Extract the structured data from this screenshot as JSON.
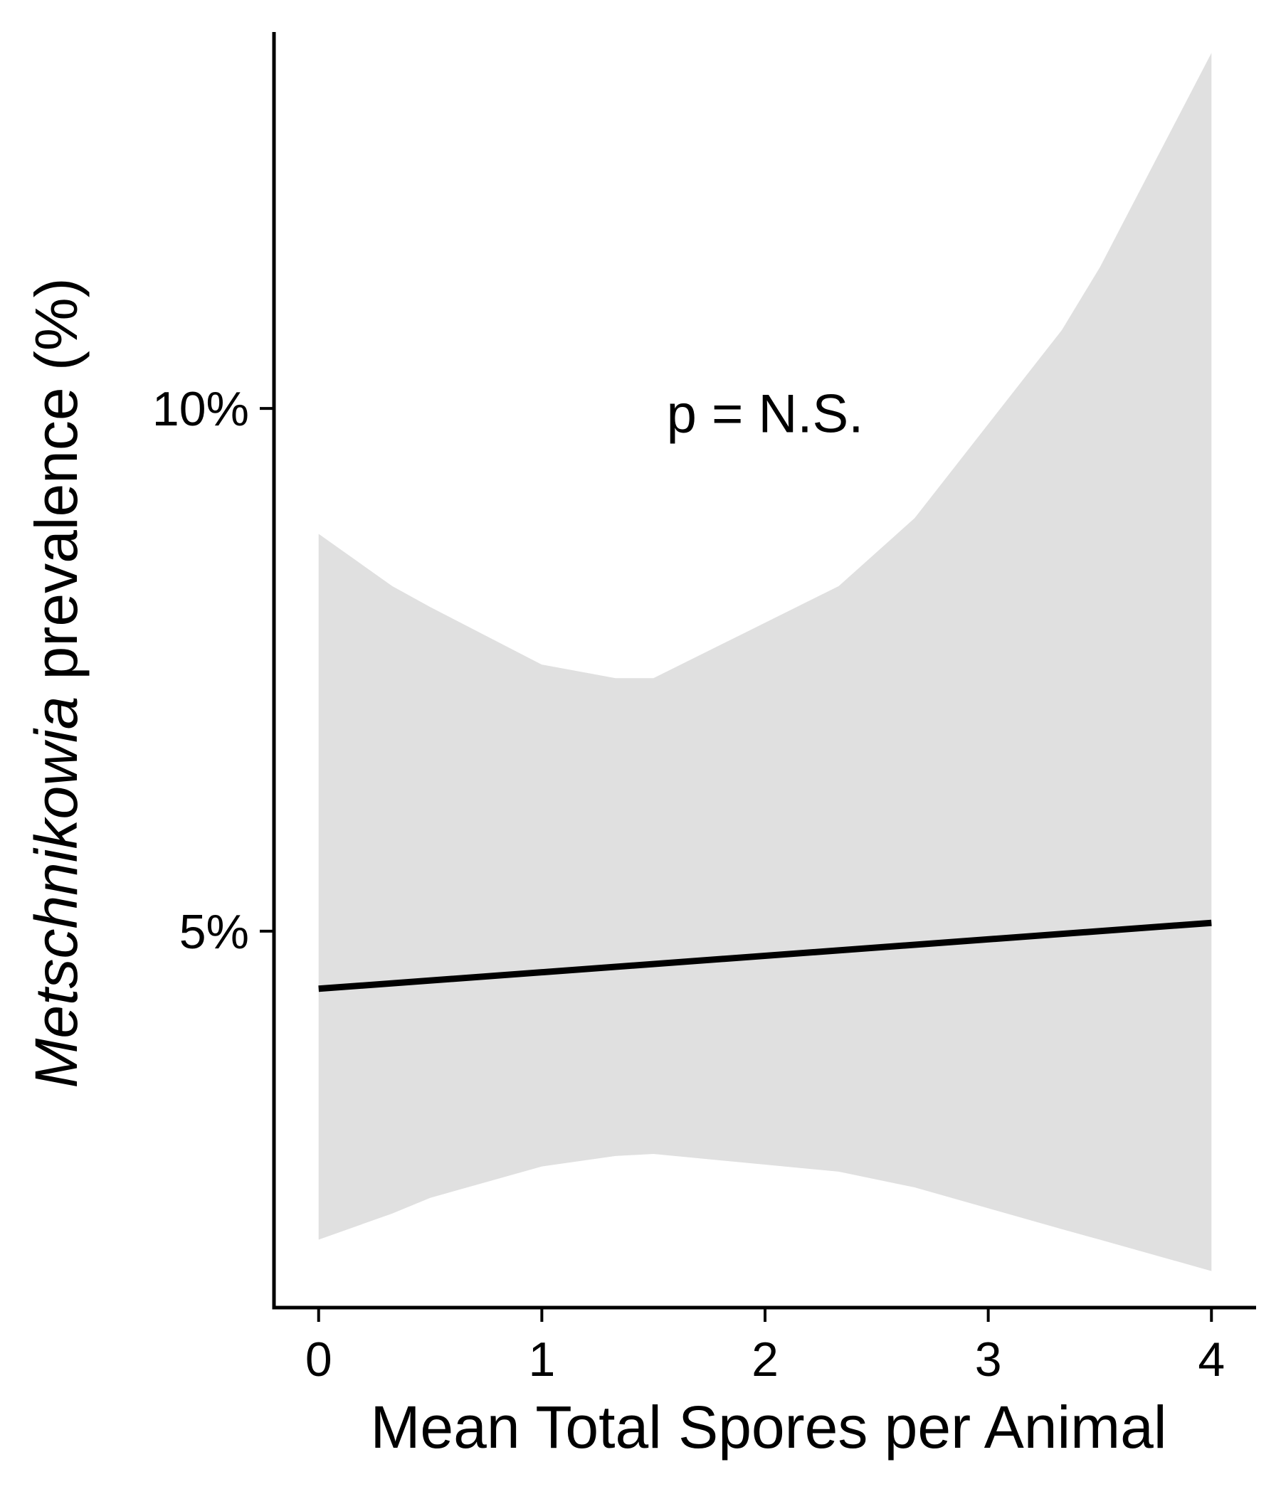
{
  "chart_data": {
    "type": "line",
    "title": "",
    "xlabel": "Mean Total Spores per Animal",
    "ylabel": {
      "italic_part": "Metschnikowia",
      "rest": " prevalence (%)"
    },
    "xlim": [
      -0.2,
      4.2
    ],
    "ylim": [
      1.4,
      13.6
    ],
    "x_ticks": [
      0,
      1,
      2,
      3,
      4
    ],
    "x_tick_labels": [
      "0",
      "1",
      "2",
      "3",
      "4"
    ],
    "y_ticks": [
      5,
      10
    ],
    "y_tick_labels": [
      "5%",
      "10%"
    ],
    "grid": false,
    "legend": "none",
    "annotation": {
      "text": "p = N.S.",
      "x": 2.0,
      "y": 9.95
    },
    "series": [
      {
        "x": [
          0,
          4
        ],
        "y": [
          4.45,
          5.08
        ],
        "color": "#000000"
      }
    ],
    "confidence_band": {
      "color": "#e0e0e0",
      "x": [
        0,
        0.33,
        0.5,
        1.0,
        1.33,
        1.5,
        2.33,
        2.67,
        3.0,
        3.33,
        3.5,
        4.0
      ],
      "upper": [
        8.8,
        8.3,
        8.1,
        7.55,
        7.42,
        7.42,
        8.3,
        8.95,
        9.85,
        10.75,
        11.35,
        13.4
      ],
      "lower": [
        2.05,
        2.3,
        2.45,
        2.75,
        2.85,
        2.87,
        2.7,
        2.55,
        2.35,
        2.15,
        2.05,
        1.75
      ]
    }
  }
}
